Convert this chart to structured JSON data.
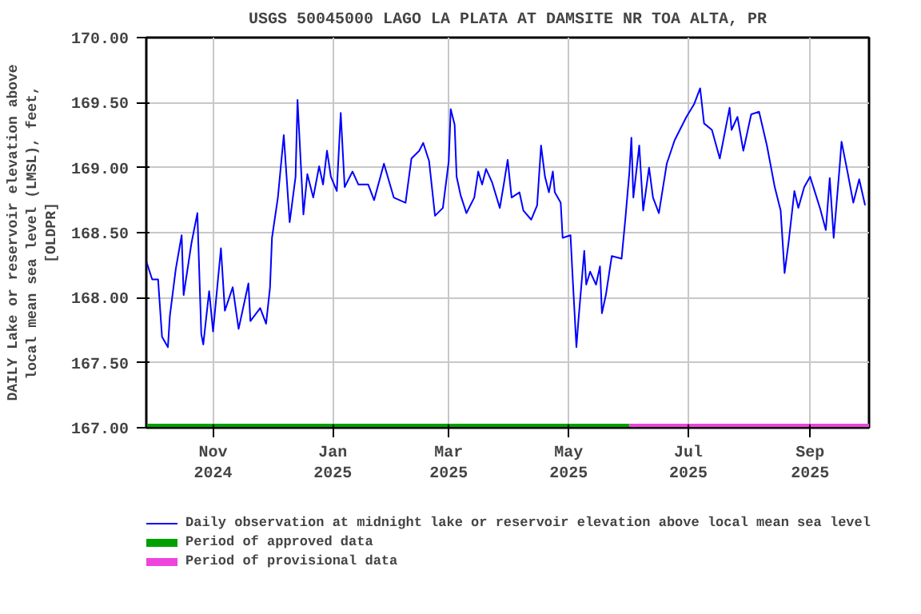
{
  "chart_data": {
    "type": "line",
    "title": "USGS 50045000 LAGO LA PLATA AT DAMSITE NR TOA ALTA, PR",
    "ylabel": "DAILY Lake or reservoir elevation above\nlocal mean sea level (LMSL), feet,\n[OLDPR]",
    "xlim": [
      "2024-09-28",
      "2025-10-01"
    ],
    "ylim": [
      167.0,
      170.0
    ],
    "xticks": [
      {
        "value": "2024-11-01",
        "label": "Nov\n2024"
      },
      {
        "value": "2025-01-01",
        "label": "Jan\n2025"
      },
      {
        "value": "2025-03-01",
        "label": "Mar\n2025"
      },
      {
        "value": "2025-05-01",
        "label": "May\n2025"
      },
      {
        "value": "2025-07-01",
        "label": "Jul\n2025"
      },
      {
        "value": "2025-09-01",
        "label": "Sep\n2025"
      }
    ],
    "yticks": [
      {
        "value": 167.0,
        "label": "167.00"
      },
      {
        "value": 167.5,
        "label": "167.50"
      },
      {
        "value": 168.0,
        "label": "168.00"
      },
      {
        "value": 168.5,
        "label": "168.50"
      },
      {
        "value": 169.0,
        "label": "169.00"
      },
      {
        "value": 169.5,
        "label": "169.50"
      },
      {
        "value": 170.0,
        "label": "170.00"
      }
    ],
    "grid": true,
    "legend": "bottom",
    "series": [
      {
        "name": "Daily observation at midnight lake or reservoir elevation above local mean sea level",
        "color": "#0000ff",
        "x": [
          "2024-09-28",
          "2024-10-01",
          "2024-10-04",
          "2024-10-06",
          "2024-10-09",
          "2024-10-10",
          "2024-10-13",
          "2024-10-16",
          "2024-10-17",
          "2024-10-21",
          "2024-10-24",
          "2024-10-26",
          "2024-10-27",
          "2024-10-30",
          "2024-11-01",
          "2024-11-05",
          "2024-11-07",
          "2024-11-11",
          "2024-11-14",
          "2024-11-19",
          "2024-11-20",
          "2024-11-25",
          "2024-11-28",
          "2024-11-30",
          "2024-12-01",
          "2024-12-04",
          "2024-12-07",
          "2024-12-10",
          "2024-12-13",
          "2024-12-14",
          "2024-12-17",
          "2024-12-19",
          "2024-12-22",
          "2024-12-25",
          "2024-12-27",
          "2024-12-29",
          "2024-12-31",
          "2025-01-03",
          "2025-01-05",
          "2025-01-07",
          "2025-01-11",
          "2025-01-14",
          "2025-01-19",
          "2025-01-22",
          "2025-01-27",
          "2025-02-01",
          "2025-02-07",
          "2025-02-10",
          "2025-02-14",
          "2025-02-16",
          "2025-02-19",
          "2025-02-22",
          "2025-02-26",
          "2025-03-01",
          "2025-03-02",
          "2025-03-04",
          "2025-03-05",
          "2025-03-07",
          "2025-03-10",
          "2025-03-14",
          "2025-03-16",
          "2025-03-18",
          "2025-03-20",
          "2025-03-23",
          "2025-03-27",
          "2025-03-29",
          "2025-03-31",
          "2025-04-02",
          "2025-04-06",
          "2025-04-08",
          "2025-04-12",
          "2025-04-15",
          "2025-04-17",
          "2025-04-19",
          "2025-04-21",
          "2025-04-23",
          "2025-04-24",
          "2025-04-27",
          "2025-04-28",
          "2025-05-02",
          "2025-05-03",
          "2025-05-05",
          "2025-05-06",
          "2025-05-09",
          "2025-05-10",
          "2025-05-12",
          "2025-05-15",
          "2025-05-17",
          "2025-05-18",
          "2025-05-20",
          "2025-05-23",
          "2025-05-28",
          "2025-05-30",
          "2025-06-01",
          "2025-06-02",
          "2025-06-03",
          "2025-06-06",
          "2025-06-08",
          "2025-06-11",
          "2025-06-13",
          "2025-06-16",
          "2025-06-20",
          "2025-06-24",
          "2025-06-30",
          "2025-07-04",
          "2025-07-07",
          "2025-07-09",
          "2025-07-13",
          "2025-07-17",
          "2025-07-22",
          "2025-07-23",
          "2025-07-26",
          "2025-07-29",
          "2025-08-02",
          "2025-08-06",
          "2025-08-10",
          "2025-08-14",
          "2025-08-17",
          "2025-08-19",
          "2025-08-21",
          "2025-08-24",
          "2025-08-26",
          "2025-08-29",
          "2025-09-01",
          "2025-09-06",
          "2025-09-09",
          "2025-09-11",
          "2025-09-13",
          "2025-09-16",
          "2025-09-17",
          "2025-09-20",
          "2025-09-23",
          "2025-09-26",
          "2025-09-29"
        ],
        "values": [
          168.28,
          168.14,
          168.14,
          167.7,
          167.62,
          167.86,
          168.22,
          168.48,
          168.02,
          168.42,
          168.65,
          167.72,
          167.64,
          168.05,
          167.74,
          168.38,
          167.9,
          168.08,
          167.76,
          168.11,
          167.82,
          167.92,
          167.8,
          168.08,
          168.46,
          168.77,
          169.25,
          168.58,
          168.93,
          169.52,
          168.64,
          168.95,
          168.77,
          169.01,
          168.87,
          169.13,
          168.93,
          168.82,
          169.42,
          168.85,
          168.97,
          168.87,
          168.87,
          168.75,
          169.03,
          168.77,
          168.73,
          169.07,
          169.13,
          169.19,
          169.05,
          168.63,
          168.69,
          169.05,
          169.45,
          169.33,
          168.93,
          168.79,
          168.65,
          168.77,
          168.97,
          168.87,
          168.99,
          168.89,
          168.69,
          168.87,
          169.06,
          168.77,
          168.81,
          168.67,
          168.6,
          168.71,
          169.17,
          168.93,
          168.81,
          168.97,
          168.81,
          168.73,
          168.46,
          168.48,
          168.18,
          167.62,
          167.82,
          168.36,
          168.1,
          168.2,
          168.1,
          168.24,
          167.88,
          168.02,
          168.32,
          168.3,
          168.62,
          168.97,
          169.23,
          168.77,
          169.17,
          168.67,
          169.0,
          168.77,
          168.65,
          169.03,
          169.21,
          169.39,
          169.49,
          169.61,
          169.34,
          169.29,
          169.07,
          169.46,
          169.29,
          169.39,
          169.13,
          169.41,
          169.43,
          169.17,
          168.85,
          168.67,
          168.19,
          168.42,
          168.82,
          168.69,
          168.85,
          168.93,
          168.69,
          168.52,
          168.92,
          168.46,
          169.0,
          169.2,
          168.97,
          168.73,
          168.91,
          168.71
        ]
      },
      {
        "name": "Period of approved data",
        "color": "#00a000",
        "x": [
          "2024-09-28",
          "2025-06-01"
        ],
        "values": [
          167.0,
          167.0
        ]
      },
      {
        "name": "Period of provisional data",
        "color": "#ee44dd",
        "x": [
          "2025-06-01",
          "2025-10-01"
        ],
        "values": [
          167.0,
          167.0
        ]
      }
    ]
  }
}
